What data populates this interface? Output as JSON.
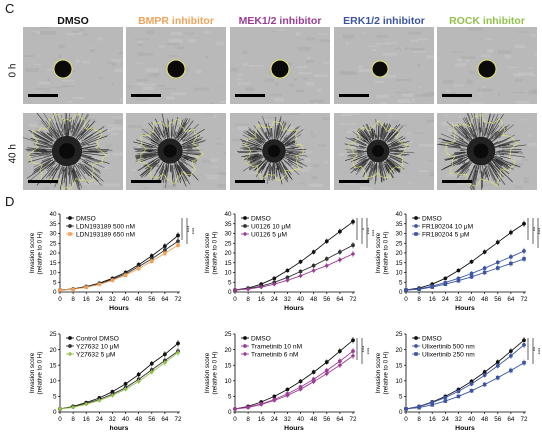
{
  "panel_c": {
    "letter": "C",
    "columns": [
      {
        "label": "DMSO",
        "color": "#111111"
      },
      {
        "label": "BMPR inhibitor",
        "color": "#f0a35a"
      },
      {
        "label": "MEK1/2 inhibitor",
        "color": "#9b3d94"
      },
      {
        "label": "ERK1/2 inhibitor",
        "color": "#3c55a3"
      },
      {
        "label": "ROCK inhibitor",
        "color": "#93c24b"
      }
    ],
    "rows": [
      {
        "label": "0 h"
      },
      {
        "label": "40 h"
      }
    ]
  },
  "panel_d": {
    "letter": "D"
  },
  "chart_data": [
    {
      "type": "line",
      "ylabel": "Invasion score\n(relative to 0 H)",
      "xlabel": "Hours",
      "x": [
        0,
        8,
        16,
        24,
        32,
        40,
        48,
        56,
        64,
        72
      ],
      "xticks": [
        "0",
        "8",
        "16",
        "24",
        "32",
        "40",
        "48",
        "56",
        "64",
        "72"
      ],
      "ylim": [
        0,
        40
      ],
      "yticks": [
        "0",
        "5",
        "10",
        "15",
        "20",
        "25",
        "30",
        "35",
        "40"
      ],
      "series": [
        {
          "name": "DMSO",
          "color": "#111111",
          "marker": "circle",
          "values": [
            1,
            1.6,
            2.8,
            4.5,
            7,
            10,
            14,
            18.5,
            23.5,
            29
          ]
        },
        {
          "name": "LDN193189 500 nM",
          "color": "#333333",
          "marker": "circle",
          "values": [
            1,
            1.5,
            2.6,
            4.2,
            6.5,
            9.3,
            13,
            17,
            21.5,
            26
          ]
        },
        {
          "name": "LDN193189 650 nM",
          "color": "#f0a35a",
          "marker": "square",
          "values": [
            1,
            1.4,
            2.4,
            3.9,
            6,
            8.6,
            12,
            15.8,
            19.8,
            24
          ]
        }
      ],
      "annotations": [
        "***",
        "***"
      ]
    },
    {
      "type": "line",
      "ylabel": "Invasion score\n(relative to 0 H)",
      "xlabel": "Hours",
      "x": [
        0,
        8,
        16,
        24,
        32,
        40,
        48,
        56,
        64,
        72
      ],
      "xticks": [
        "0",
        "8",
        "16",
        "24",
        "32",
        "40",
        "48",
        "56",
        "64",
        "72"
      ],
      "ylim": [
        0,
        40
      ],
      "yticks": [
        "0",
        "5",
        "10",
        "15",
        "20",
        "25",
        "30",
        "35",
        "40"
      ],
      "series": [
        {
          "name": "DMSO",
          "color": "#111111",
          "marker": "circle",
          "values": [
            1,
            2,
            4,
            7,
            11,
            15.5,
            20.5,
            26,
            31,
            36
          ]
        },
        {
          "name": "U0126 10 μM",
          "color": "#333333",
          "marker": "circle",
          "values": [
            1,
            1.7,
            3,
            5,
            7.5,
            10.5,
            13.5,
            17,
            20.5,
            24
          ]
        },
        {
          "name": "U0126 5 μM",
          "color": "#9b3d94",
          "marker": "diamond",
          "values": [
            1,
            1.5,
            2.5,
            4,
            6,
            8.3,
            11,
            13.5,
            16.5,
            19.5
          ]
        }
      ],
      "annotations": [
        "*",
        "***",
        "***"
      ]
    },
    {
      "type": "line",
      "ylabel": "Invasion score\n(relative to 0 H)",
      "xlabel": "Hours",
      "x": [
        0,
        8,
        16,
        24,
        32,
        40,
        48,
        56,
        64,
        72
      ],
      "xticks": [
        "0",
        "8",
        "16",
        "24",
        "32",
        "40",
        "48",
        "56",
        "64",
        "72"
      ],
      "ylim": [
        0,
        40
      ],
      "yticks": [
        "0",
        "5",
        "10",
        "15",
        "20",
        "25",
        "30",
        "35",
        "40"
      ],
      "series": [
        {
          "name": "DMSO",
          "color": "#111111",
          "marker": "circle",
          "values": [
            1,
            2,
            4,
            7,
            11,
            15.5,
            20.5,
            25.5,
            30.5,
            35
          ]
        },
        {
          "name": "FR180204 10 μM",
          "color": "#3c55a3",
          "marker": "circle",
          "values": [
            1,
            1.6,
            3,
            4.8,
            7,
            9.5,
            12.2,
            15.2,
            18,
            21
          ]
        },
        {
          "name": "FR180204 5 μM",
          "color": "#3c55a3",
          "marker": "square",
          "values": [
            1,
            1.4,
            2.5,
            4,
            5.8,
            7.8,
            10,
            12.3,
            14.6,
            17
          ]
        }
      ],
      "annotations": [
        "**",
        "***",
        "***"
      ]
    },
    {
      "type": "line",
      "ylabel": "Invasion score\n(relative to 0 H)",
      "xlabel": "hours",
      "x": [
        0,
        8,
        16,
        24,
        32,
        40,
        48,
        56,
        64,
        72
      ],
      "xticks": [
        "0",
        "8",
        "16",
        "24",
        "32",
        "40",
        "48",
        "56",
        "64",
        "72"
      ],
      "ylim": [
        0,
        25
      ],
      "yticks": [
        "0",
        "5",
        "10",
        "15",
        "20",
        "25"
      ],
      "series": [
        {
          "name": "Control DMSO",
          "color": "#111111",
          "marker": "circle",
          "values": [
            1,
            1.8,
            3,
            4.5,
            6.5,
            9,
            12,
            15.5,
            18.5,
            22
          ]
        },
        {
          "name": "Y27632 10 μM",
          "color": "#333333",
          "marker": "circle",
          "values": [
            1,
            1.6,
            2.7,
            4,
            5.7,
            7.8,
            10.5,
            13.5,
            16.5,
            19.5
          ]
        },
        {
          "name": "Y27632 5 μM",
          "color": "#93c24b",
          "marker": "diamond",
          "values": [
            1,
            1.5,
            2.5,
            3.7,
            5.3,
            7.3,
            9.8,
            12.8,
            15.8,
            19
          ]
        }
      ],
      "annotations": []
    },
    {
      "type": "line",
      "ylabel": "Invasion score\n(relative to 0 H)",
      "xlabel": "Hours",
      "x": [
        0,
        8,
        16,
        24,
        32,
        40,
        48,
        56,
        64,
        72
      ],
      "xticks": [
        "0",
        "8",
        "16",
        "24",
        "32",
        "40",
        "48",
        "56",
        "64",
        "72"
      ],
      "ylim": [
        0,
        25
      ],
      "yticks": [
        "0",
        "5",
        "10",
        "15",
        "20",
        "25"
      ],
      "series": [
        {
          "name": "DMSO",
          "color": "#111111",
          "marker": "circle",
          "values": [
            1,
            1.8,
            3.2,
            5,
            7.2,
            9.8,
            12.8,
            16,
            19.5,
            23
          ]
        },
        {
          "name": "Trametinib 10 nM",
          "color": "#9b3d94",
          "marker": "circle",
          "values": [
            1,
            1.5,
            2.6,
            4,
            5.8,
            8,
            10.5,
            13.3,
            16.3,
            19.5
          ]
        },
        {
          "name": "Trametinib 6 nM",
          "color": "#9b3d94",
          "marker": "diamond",
          "values": [
            1,
            1.4,
            2.4,
            3.7,
            5.3,
            7.3,
            9.7,
            12.3,
            15,
            18
          ]
        }
      ],
      "annotations": [
        "***",
        "***"
      ]
    },
    {
      "type": "line",
      "ylabel": "Invasion score\n(relative to 0 H)",
      "xlabel": "Hours",
      "x": [
        0,
        8,
        16,
        24,
        32,
        40,
        48,
        56,
        64,
        72
      ],
      "xticks": [
        "0",
        "8",
        "16",
        "24",
        "32",
        "40",
        "48",
        "56",
        "64",
        "72"
      ],
      "ylim": [
        0,
        25
      ],
      "yticks": [
        "0",
        "5",
        "10",
        "15",
        "20",
        "25"
      ],
      "series": [
        {
          "name": "DMSO",
          "color": "#111111",
          "marker": "circle",
          "values": [
            1,
            1.8,
            3.2,
            5,
            7.2,
            9.8,
            12.8,
            16,
            19.5,
            23
          ]
        },
        {
          "name": "Ulixertinib 500 nm",
          "color": "#3c55a3",
          "marker": "circle",
          "values": [
            1,
            1.7,
            3,
            4.6,
            6.6,
            9,
            11.8,
            14.8,
            18,
            21.5
          ]
        },
        {
          "name": "Ulixertinib 250 nm",
          "color": "#3c55a3",
          "marker": "square",
          "values": [
            1,
            1.4,
            2.3,
            3.5,
            5,
            6.8,
            8.8,
            11,
            13.3,
            15.8
          ]
        }
      ],
      "annotations": [
        "**",
        "***"
      ]
    }
  ]
}
